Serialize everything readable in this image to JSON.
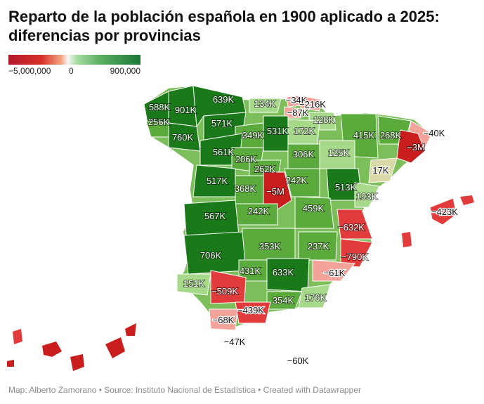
{
  "title": "Reparto de la población española en 1900 aplicado a 2025: diferencias por provincias",
  "legend": {
    "min_label": "−5,000,000",
    "mid_label": "0",
    "max_label": "900,000",
    "min_value": -5000000,
    "mid_value": 0,
    "max_value": 900000
  },
  "colors": {
    "strong_negative": "#c81e1e",
    "negative": "#e23b3b",
    "light_negative": "#f4a39a",
    "neutral": "#d9d9a8",
    "light_positive": "#a6d98a",
    "positive": "#5aaa3c",
    "strong_positive": "#1a7a1a"
  },
  "regions": [
    {
      "label": "588K",
      "value": 588000
    },
    {
      "label": "901K",
      "value": 901000
    },
    {
      "label": "639K",
      "value": 639000
    },
    {
      "label": "256K",
      "value": 256000
    },
    {
      "label": "760K",
      "value": 760000
    },
    {
      "label": "571K",
      "value": 571000
    },
    {
      "label": "134K",
      "value": 134000
    },
    {
      "label": "−34K",
      "value": -34000
    },
    {
      "label": "−216K",
      "value": -216000
    },
    {
      "label": "−87K",
      "value": -87000
    },
    {
      "label": "128K",
      "value": 128000
    },
    {
      "label": "349K",
      "value": 349000
    },
    {
      "label": "531K",
      "value": 531000
    },
    {
      "label": "172K",
      "value": 172000
    },
    {
      "label": "415K",
      "value": 415000
    },
    {
      "label": "268K",
      "value": 268000
    },
    {
      "label": "−40K",
      "value": -40000
    },
    {
      "label": "561K",
      "value": 561000
    },
    {
      "label": "306K",
      "value": 306000
    },
    {
      "label": "125K",
      "value": 125000
    },
    {
      "label": "−3M",
      "value": -3000000
    },
    {
      "label": "206K",
      "value": 206000
    },
    {
      "label": "262K",
      "value": 262000
    },
    {
      "label": "17K",
      "value": 17000
    },
    {
      "label": "517K",
      "value": 517000
    },
    {
      "label": "368K",
      "value": 368000
    },
    {
      "label": "−5M",
      "value": -5000000
    },
    {
      "label": "242K",
      "value": 242000
    },
    {
      "label": "513K",
      "value": 513000
    },
    {
      "label": "193K",
      "value": 193000
    },
    {
      "label": "242K",
      "value": 242000
    },
    {
      "label": "459K",
      "value": 459000
    },
    {
      "label": "−423K",
      "value": -423000
    },
    {
      "label": "567K",
      "value": 567000
    },
    {
      "label": "−632K",
      "value": -632000
    },
    {
      "label": "353K",
      "value": 353000
    },
    {
      "label": "237K",
      "value": 237000
    },
    {
      "label": "706K",
      "value": 706000
    },
    {
      "label": "−790K",
      "value": -790000
    },
    {
      "label": "431K",
      "value": 431000
    },
    {
      "label": "633K",
      "value": 633000
    },
    {
      "label": "−61K",
      "value": -61000
    },
    {
      "label": "151K",
      "value": 151000
    },
    {
      "label": "−509K",
      "value": -509000
    },
    {
      "label": "354K",
      "value": 354000
    },
    {
      "label": "176K",
      "value": 176000
    },
    {
      "label": "−439K",
      "value": -439000
    },
    {
      "label": "−68K",
      "value": -68000
    },
    {
      "label": "−47K",
      "value": -47000
    },
    {
      "label": "−60K",
      "value": -60000
    }
  ],
  "footer": {
    "map_credit": "Map: Alberto Zamorano",
    "source": "Source: Instituto Nacional de Estadística",
    "tool": "Created with Datawrapper",
    "separator": " • "
  }
}
